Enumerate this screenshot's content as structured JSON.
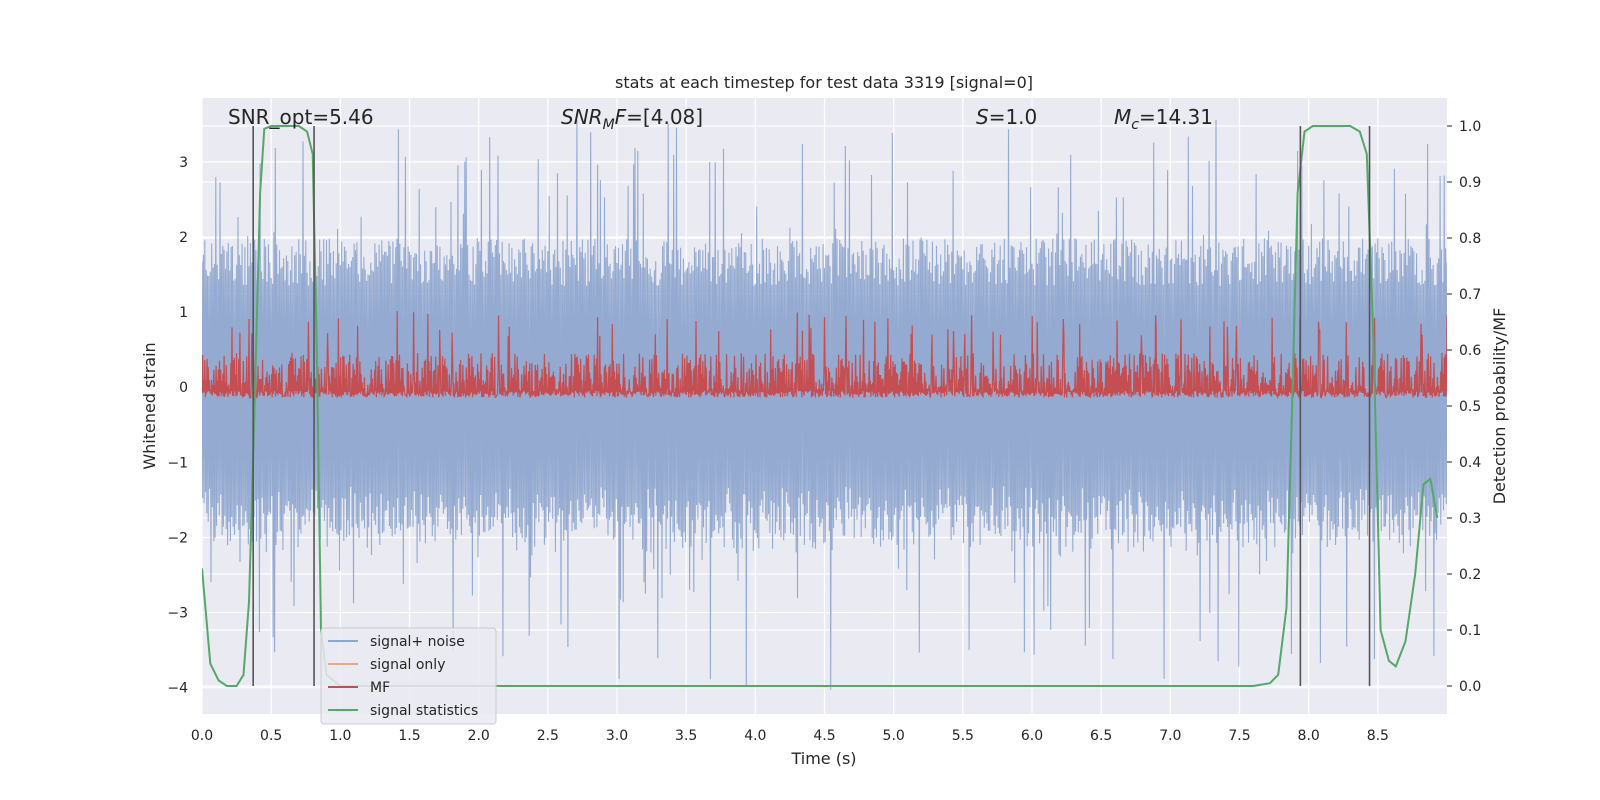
{
  "chart_data": {
    "type": "line",
    "title": "stats at each timestep for test data 3319 [signal=0]",
    "xlabel": "Time (s)",
    "ylabel_left": "Whitened strain",
    "ylabel_right": "Detection probability/MF",
    "xlim": [
      0,
      9.0
    ],
    "ylim_left": [
      -4.35,
      3.85
    ],
    "ylim_right": [
      -0.05,
      1.05
    ],
    "x_ticks": [
      "0.0",
      "0.5",
      "1.0",
      "1.5",
      "2.0",
      "2.5",
      "3.0",
      "3.5",
      "4.0",
      "4.5",
      "5.0",
      "5.5",
      "6.0",
      "6.5",
      "7.0",
      "7.5",
      "8.0",
      "8.5"
    ],
    "y_ticks_left": [
      "3",
      "2",
      "1",
      "0",
      "−1",
      "−2",
      "−3",
      "−4"
    ],
    "y_ticks_right": [
      "1.0",
      "0.9",
      "0.8",
      "0.7",
      "0.6",
      "0.5",
      "0.4",
      "0.3",
      "0.2",
      "0.1",
      "0.0"
    ],
    "annotations": [
      {
        "label": "SNR_opt",
        "value": "=5.46"
      },
      {
        "label": "SNR",
        "subscript": "M",
        "label_tail": "F",
        "value": "=[4.08]"
      },
      {
        "label": "S",
        "value": "=1.0"
      },
      {
        "label": "M",
        "subscript": "c",
        "value": "=14.31"
      }
    ],
    "grid": true,
    "legend_position": "lower-left",
    "series": [
      {
        "name": "signal+ noise",
        "color": "#8fa6cf",
        "axis": "left",
        "style": "noise",
        "amplitude_typical": 1.8,
        "amplitude_peak": 3.6
      },
      {
        "name": "signal only",
        "color": "#e8a78a",
        "axis": "left",
        "style": "flat",
        "values": [
          0,
          0
        ]
      },
      {
        "name": "MF",
        "color": "#c44e52",
        "axis": "right",
        "style": "noise",
        "baseline": 0.555,
        "spread": 0.04,
        "peak": 0.67
      },
      {
        "name": "signal statistics",
        "color": "#55a868",
        "axis": "right",
        "x": [
          0.0,
          0.06,
          0.12,
          0.18,
          0.25,
          0.3,
          0.34,
          0.38,
          0.42,
          0.45,
          0.5,
          0.6,
          0.7,
          0.76,
          0.8,
          0.83,
          0.86,
          0.9,
          1.0,
          2.0,
          4.0,
          5.7,
          7.0,
          7.6,
          7.72,
          7.78,
          7.84,
          7.88,
          7.92,
          7.97,
          8.03,
          8.1,
          8.2,
          8.3,
          8.37,
          8.42,
          8.47,
          8.52,
          8.58,
          8.63,
          8.7,
          8.77,
          8.83,
          8.88,
          8.93
        ],
        "y": [
          0.21,
          0.04,
          0.01,
          0.0,
          0.0,
          0.02,
          0.15,
          0.5,
          0.88,
          0.995,
          1.0,
          1.0,
          1.0,
          0.99,
          0.95,
          0.6,
          0.1,
          0.02,
          0.0,
          0.0,
          0.0,
          0.0,
          0.0,
          0.0,
          0.005,
          0.02,
          0.14,
          0.5,
          0.88,
          0.99,
          1.0,
          1.0,
          1.0,
          1.0,
          0.99,
          0.95,
          0.6,
          0.1,
          0.045,
          0.035,
          0.08,
          0.2,
          0.36,
          0.37,
          0.3
        ]
      }
    ],
    "vertical_markers": [
      0.37,
      0.81,
      7.94,
      8.44
    ],
    "vertical_marker_color": "#555555"
  }
}
